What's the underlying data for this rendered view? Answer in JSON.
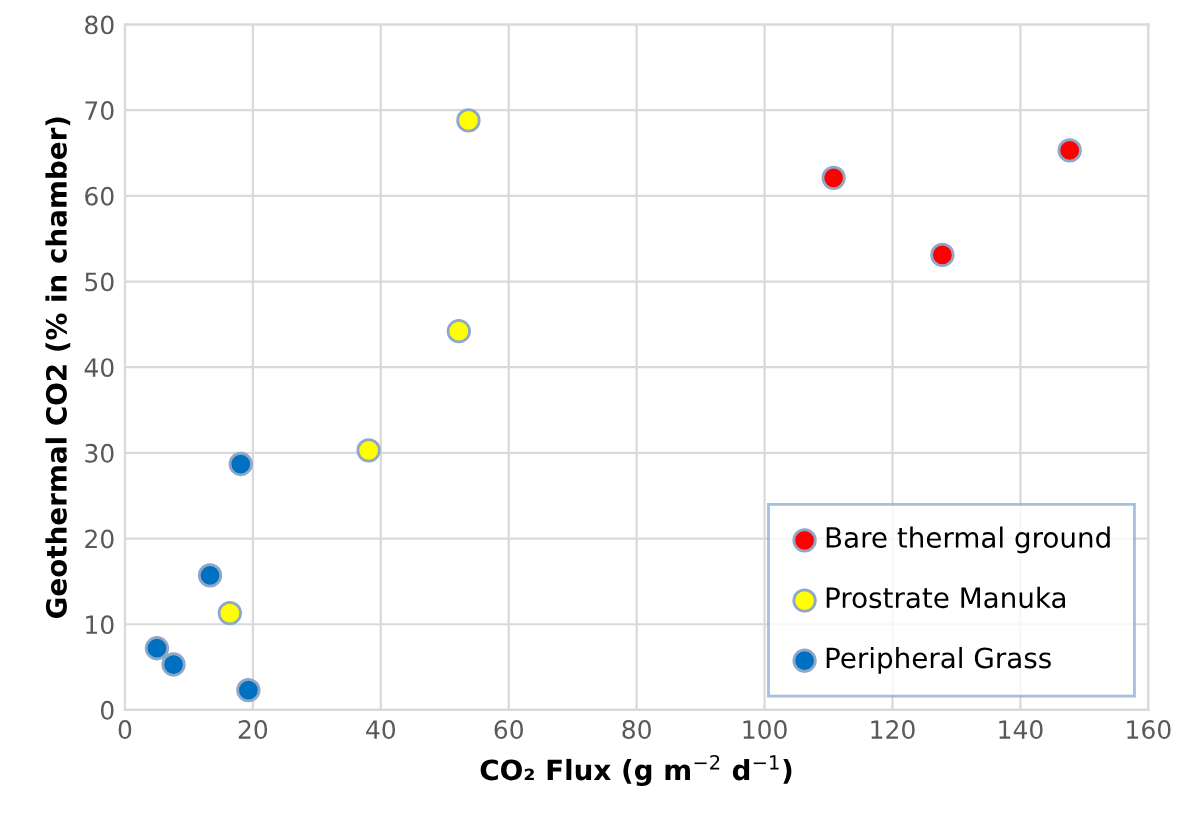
{
  "chart_data": {
    "type": "scatter",
    "xlabel": "CO₂ Flux (g m$^{−2}$ d$^{−1}$)",
    "ylabel": "Geothermal CO2 (% in chamber)",
    "xlim": [
      0,
      160
    ],
    "xticks": [
      0,
      20,
      40,
      60,
      80,
      100,
      120,
      140,
      160
    ],
    "ylim": [
      0,
      80
    ],
    "yticks": [
      0,
      10,
      20,
      30,
      40,
      50,
      60,
      70,
      80
    ],
    "grid": true,
    "legend": "bottom right",
    "marker": "circle",
    "series": [
      {
        "name": "Bare thermal ground",
        "color": "#ff0000",
        "x": [
          110.8,
          127.8,
          147.7
        ],
        "values": [
          62.1,
          53.1,
          65.3
        ]
      },
      {
        "name": "Prostrate Manuka",
        "color": "#ffff00",
        "x": [
          53.7,
          52.2,
          38.1,
          16.4
        ],
        "values": [
          68.8,
          44.2,
          30.3,
          11.3
        ]
      },
      {
        "name": "Peripheral Grass",
        "color": "#0070c0",
        "x": [
          18.1,
          13.3,
          5.0,
          7.6,
          19.3
        ],
        "values": [
          28.7,
          15.7,
          7.2,
          5.3,
          2.3
        ]
      }
    ]
  }
}
